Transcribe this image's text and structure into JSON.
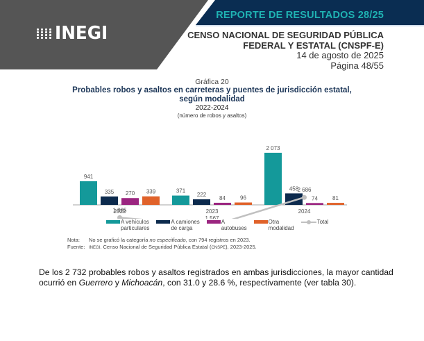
{
  "header": {
    "logo_text": "INEGI",
    "report_title": "REPORTE DE RESULTADOS 28/25",
    "census_line1": "CENSO NACIONAL DE SEGURIDAD PÚBLICA",
    "census_line2": "FEDERAL Y ESTATAL (CNSPF-E)",
    "date": "14 de agosto de 2025",
    "page": "Página 48/55",
    "colors": {
      "gray": "#555555",
      "navy": "#0a2d52",
      "teal_text": "#1fb3b3"
    }
  },
  "chart_data": {
    "type": "bar",
    "figure_number": "Gráfica 20",
    "title": "Probables robos y asaltos en carreteras y puentes de jurisdicción estatal, según modalidad",
    "title_line1": "Probables robos y asaltos en carreteras y puentes de jurisdicción estatal,",
    "title_line2": "según modalidad",
    "subtitle": "2022-2024",
    "units": "(número de robos y asaltos)",
    "categories": [
      "2022",
      "2023",
      "2024"
    ],
    "series": [
      {
        "name": "A vehículos particulares",
        "legend_line1": "A vehículos",
        "legend_line2": "particulares",
        "color": "#14999a",
        "values": [
          941,
          371,
          2073
        ],
        "labels": [
          "941",
          "371",
          "2 073"
        ]
      },
      {
        "name": "A camiones de carga",
        "legend_line1": "A camiones",
        "legend_line2": "de carga",
        "color": "#0c2a4d",
        "values": [
          335,
          222,
          458
        ],
        "labels": [
          "335",
          "222",
          "458"
        ]
      },
      {
        "name": "A autobuses",
        "legend_line1": "A",
        "legend_line2": "autobuses",
        "color": "#9b2580",
        "values": [
          270,
          84,
          74
        ],
        "labels": [
          "270",
          "84",
          "74"
        ]
      },
      {
        "name": "Otra modalidad",
        "legend_line1": "Otra",
        "legend_line2": "modalidad",
        "color": "#e0622a",
        "values": [
          339,
          96,
          81
        ],
        "labels": [
          "339",
          "96",
          "81"
        ]
      }
    ],
    "line_series": {
      "name": "Total",
      "legend_line1": "Total",
      "color": "#c0c0c0",
      "values": [
        1885,
        1567,
        2686
      ],
      "labels": [
        "1 885",
        "1 567",
        "2 686"
      ]
    },
    "xlabel": "",
    "ylabel": "",
    "grid": false,
    "legend_position": "bottom"
  },
  "notes": {
    "note_label": "Nota:",
    "note_pre": "No se graficó la categoría ",
    "note_italic": "no especificado",
    "note_post": ", con 794 registros en 2023.",
    "source_label": "Fuente:",
    "source_inegi": "INEGI",
    "source_mid": ". Censo Nacional de Seguridad Pública Estatal (",
    "source_cnspe": "CNSPE",
    "source_end": "), 2023-2025."
  },
  "paragraph": {
    "part1": "De los 2 732 probables robos y asaltos registrados en ambas jurisdicciones, la mayor cantidad ocurrió en ",
    "state1": "Guerrero",
    "part2": " y ",
    "state2": "Michoacán",
    "part3": ", con 31.0 y 28.6 %, respectivamente (ver tabla 30)."
  }
}
